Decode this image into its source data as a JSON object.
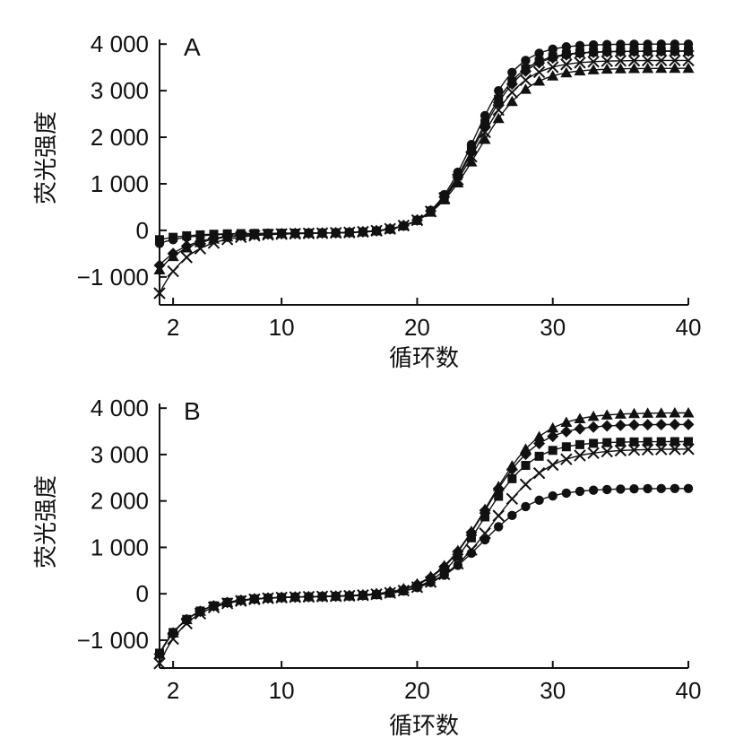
{
  "chart_data": [
    {
      "type": "line",
      "panel_label": "A",
      "xlabel": "循环数",
      "ylabel": "荧光强度",
      "xlim": [
        1,
        40
      ],
      "ylim": [
        -1600,
        4100
      ],
      "xticks": [
        2,
        10,
        20,
        30,
        40
      ],
      "xtick_labels": [
        "2",
        "10",
        "20",
        "30",
        "40"
      ],
      "yticks": [
        -1000,
        0,
        1000,
        2000,
        3000,
        4000
      ],
      "ytick_labels": [
        "−1 000",
        "0",
        "1 000",
        "2 000",
        "3 000",
        "4 000"
      ],
      "marker_colors": "#111111",
      "series": [
        {
          "marker": "circle",
          "base": -280,
          "plateau": 4000,
          "mid": 24.2,
          "k": 0.62
        },
        {
          "marker": "square",
          "base": -200,
          "plateau": 3850,
          "mid": 24.3,
          "k": 0.6
        },
        {
          "marker": "diamond",
          "base": -750,
          "plateau": 3850,
          "mid": 24.4,
          "k": 0.58
        },
        {
          "marker": "cross",
          "base": -1350,
          "plateau": 3650,
          "mid": 24.4,
          "k": 0.57
        },
        {
          "marker": "triangle",
          "base": -850,
          "plateau": 3480,
          "mid": 24.5,
          "k": 0.55
        }
      ]
    },
    {
      "type": "line",
      "panel_label": "B",
      "xlabel": "循环数",
      "ylabel": "荧光强度",
      "xlim": [
        1,
        40
      ],
      "ylim": [
        -1600,
        4100
      ],
      "xticks": [
        2,
        10,
        20,
        30,
        40
      ],
      "xtick_labels": [
        "2",
        "10",
        "20",
        "30",
        "40"
      ],
      "yticks": [
        -1000,
        0,
        1000,
        2000,
        3000,
        4000
      ],
      "ytick_labels": [
        "−1 000",
        "0",
        "1 000",
        "2 000",
        "3 000",
        "4 000"
      ],
      "marker_colors": "#111111",
      "series": [
        {
          "marker": "triangle",
          "base": -1300,
          "plateau": 3900,
          "mid": 25.2,
          "k": 0.5
        },
        {
          "marker": "diamond",
          "base": -1300,
          "plateau": 3650,
          "mid": 25.0,
          "k": 0.52
        },
        {
          "marker": "square",
          "base": -1280,
          "plateau": 3280,
          "mid": 24.9,
          "k": 0.55
        },
        {
          "marker": "cross",
          "base": -1500,
          "plateau": 3120,
          "mid": 25.6,
          "k": 0.48
        },
        {
          "marker": "circle",
          "base": -1300,
          "plateau": 2270,
          "mid": 24.8,
          "k": 0.5
        }
      ]
    }
  ]
}
